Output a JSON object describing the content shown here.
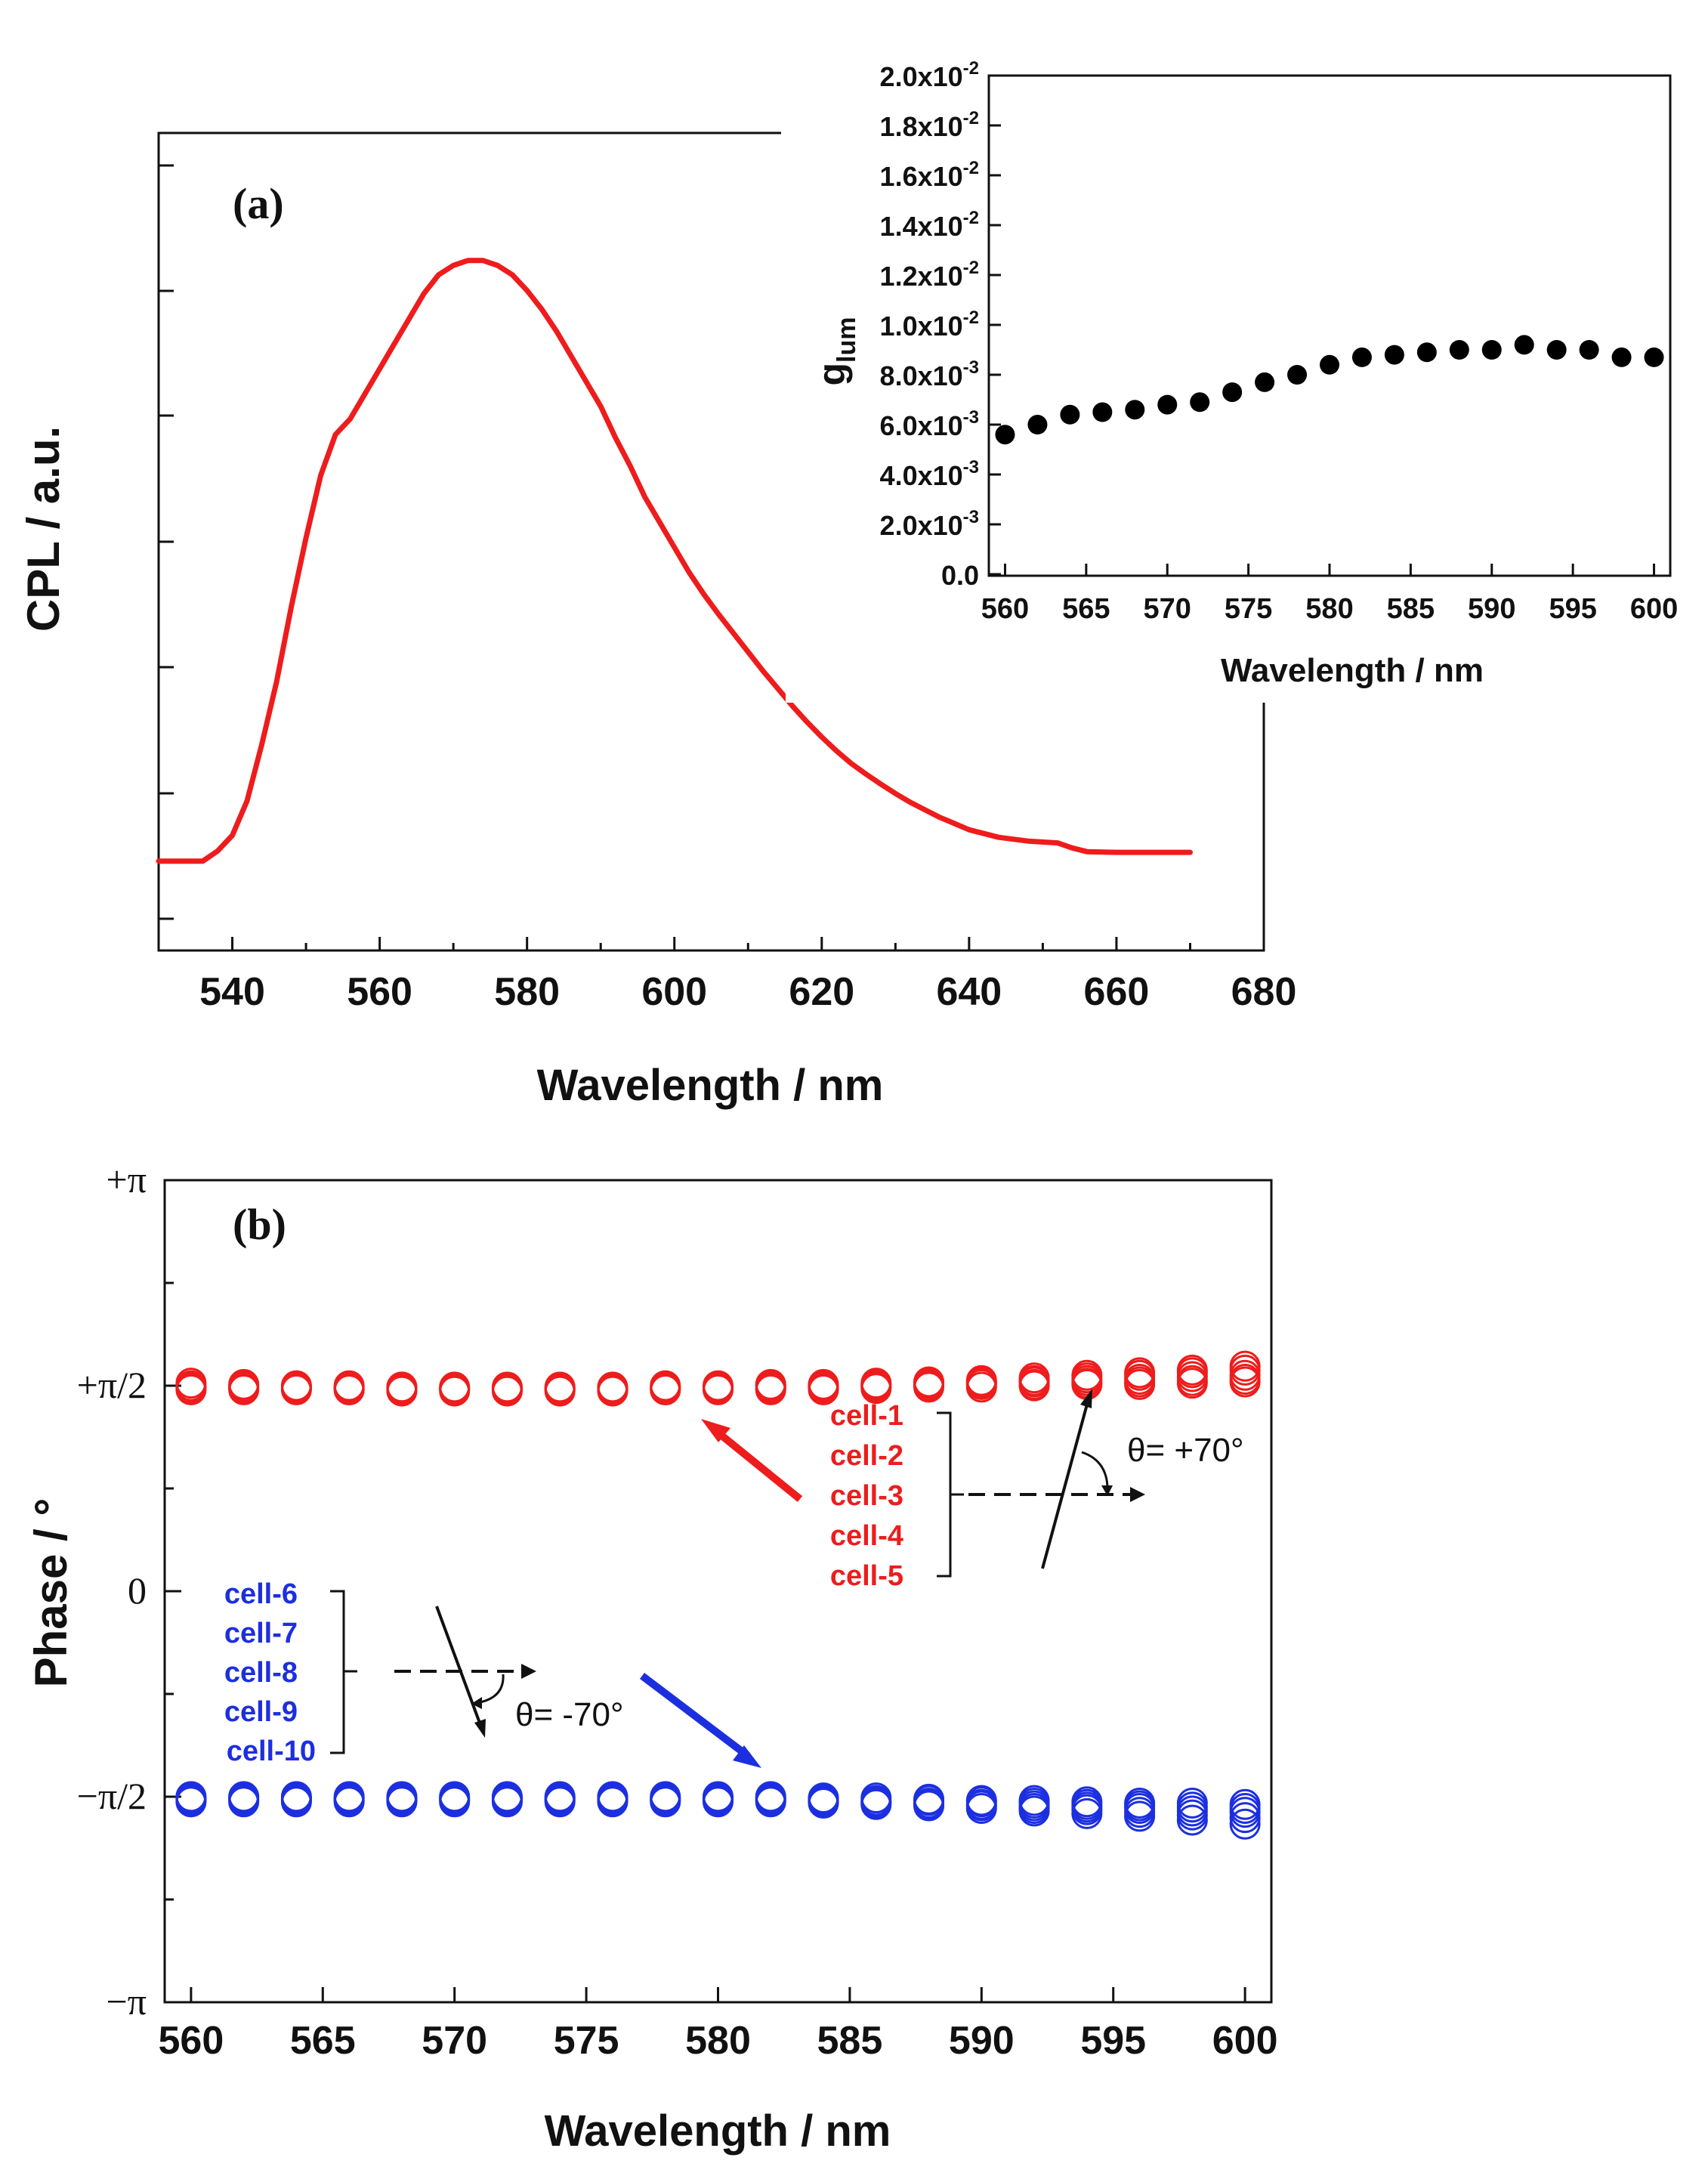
{
  "chart_data": [
    {
      "panel": "(a)",
      "type": "line",
      "title": "",
      "xlabel": "Wavelength / nm",
      "ylabel": "CPL  / a.u.",
      "xlim": [
        530,
        680
      ],
      "ylim": [
        0,
        1
      ],
      "xticks": [
        540,
        560,
        580,
        600,
        620,
        640,
        660,
        680
      ],
      "color": "#ee1c1c",
      "series": [
        {
          "name": "CPL",
          "x": [
            530,
            536,
            538,
            540,
            542,
            544,
            546,
            548,
            550,
            552,
            554,
            556,
            558,
            560,
            562,
            564,
            566,
            568,
            570,
            572,
            574,
            576,
            578,
            580,
            582,
            584,
            586,
            588,
            590,
            592,
            594,
            596,
            598,
            600,
            602,
            604,
            606,
            608,
            610,
            612,
            614,
            616,
            618,
            620,
            622,
            624,
            626,
            628,
            630,
            632,
            634,
            636,
            638,
            640,
            644,
            648,
            652,
            654,
            656,
            660,
            664,
            670
          ],
          "values": [
            0.004,
            0.004,
            0.02,
            0.045,
            0.1,
            0.19,
            0.29,
            0.41,
            0.52,
            0.62,
            0.685,
            0.71,
            0.75,
            0.79,
            0.83,
            0.87,
            0.91,
            0.94,
            0.955,
            0.963,
            0.963,
            0.955,
            0.94,
            0.915,
            0.885,
            0.85,
            0.81,
            0.77,
            0.73,
            0.68,
            0.635,
            0.585,
            0.545,
            0.505,
            0.465,
            0.43,
            0.398,
            0.368,
            0.338,
            0.308,
            0.28,
            0.252,
            0.226,
            0.202,
            0.18,
            0.16,
            0.143,
            0.127,
            0.112,
            0.098,
            0.086,
            0.074,
            0.064,
            0.054,
            0.042,
            0.036,
            0.033,
            0.025,
            0.019,
            0.018,
            0.018,
            0.018
          ]
        }
      ]
    },
    {
      "panel": "inset",
      "type": "scatter",
      "xlabel": "Wavelength / nm",
      "ylabel": "g",
      "ylabel_sub": "lum",
      "xlim": [
        559,
        601
      ],
      "ylim": [
        0,
        0.02
      ],
      "xticks": [
        560,
        565,
        570,
        575,
        580,
        585,
        590,
        595,
        600
      ],
      "yticks": [
        {
          "value": 0.0,
          "base": "0.0",
          "exp": ""
        },
        {
          "value": 0.002,
          "base": "2.0x10",
          "exp": "-3"
        },
        {
          "value": 0.004,
          "base": "4.0x10",
          "exp": "-3"
        },
        {
          "value": 0.006,
          "base": "6.0x10",
          "exp": "-3"
        },
        {
          "value": 0.008,
          "base": "8.0x10",
          "exp": "-3"
        },
        {
          "value": 0.01,
          "base": "1.0x10",
          "exp": "-2"
        },
        {
          "value": 0.012,
          "base": "1.2x10",
          "exp": "-2"
        },
        {
          "value": 0.014,
          "base": "1.4x10",
          "exp": "-2"
        },
        {
          "value": 0.016,
          "base": "1.6x10",
          "exp": "-2"
        },
        {
          "value": 0.018,
          "base": "1.8x10",
          "exp": "-2"
        },
        {
          "value": 0.02,
          "base": "2.0x10",
          "exp": "-2"
        }
      ],
      "series": [
        {
          "name": "glum",
          "x": [
            560,
            562,
            564,
            566,
            568,
            570,
            572,
            574,
            576,
            578,
            580,
            582,
            584,
            586,
            588,
            590,
            592,
            594,
            596,
            598,
            600
          ],
          "values": [
            0.0056,
            0.006,
            0.0064,
            0.0065,
            0.0066,
            0.0068,
            0.0069,
            0.0073,
            0.0077,
            0.008,
            0.0084,
            0.0087,
            0.0088,
            0.0089,
            0.009,
            0.009,
            0.0092,
            0.009,
            0.009,
            0.0087,
            0.0087
          ]
        }
      ]
    },
    {
      "panel": "(b)",
      "type": "scatter",
      "xlabel": "Wavelength / nm",
      "ylabel": "Phase / °",
      "xlim": [
        559,
        601
      ],
      "ylim": [
        -3.1416,
        3.1416
      ],
      "xticks": [
        560,
        565,
        570,
        575,
        580,
        585,
        590,
        595,
        600
      ],
      "yticks": [
        {
          "value": 3.1416,
          "label": "+π"
        },
        {
          "value": 1.5708,
          "label": "+π/2"
        },
        {
          "value": 0,
          "label": "0"
        },
        {
          "value": -1.5708,
          "label": "−π/2"
        },
        {
          "value": -3.1416,
          "label": "−π"
        }
      ],
      "x": [
        560,
        562,
        564,
        566,
        568,
        570,
        572,
        574,
        576,
        578,
        580,
        582,
        584,
        586,
        588,
        590,
        592,
        594,
        596,
        598,
        600
      ],
      "series": [
        {
          "name": "cell-1",
          "color": "#ee1c1c",
          "values": [
            1.59,
            1.58,
            1.57,
            1.57,
            1.56,
            1.56,
            1.56,
            1.56,
            1.56,
            1.57,
            1.57,
            1.58,
            1.58,
            1.59,
            1.6,
            1.61,
            1.63,
            1.65,
            1.67,
            1.69,
            1.72
          ]
        },
        {
          "name": "cell-2",
          "color": "#ee1c1c",
          "values": [
            1.57,
            1.57,
            1.56,
            1.56,
            1.56,
            1.55,
            1.55,
            1.55,
            1.55,
            1.56,
            1.56,
            1.57,
            1.57,
            1.58,
            1.59,
            1.6,
            1.61,
            1.63,
            1.65,
            1.67,
            1.69
          ]
        },
        {
          "name": "cell-3",
          "color": "#ee1c1c",
          "values": [
            1.56,
            1.56,
            1.55,
            1.55,
            1.55,
            1.55,
            1.55,
            1.55,
            1.55,
            1.55,
            1.55,
            1.56,
            1.56,
            1.57,
            1.58,
            1.59,
            1.6,
            1.61,
            1.62,
            1.64,
            1.65
          ]
        },
        {
          "name": "cell-4",
          "color": "#ee1c1c",
          "values": [
            1.55,
            1.55,
            1.55,
            1.54,
            1.54,
            1.54,
            1.54,
            1.54,
            1.54,
            1.54,
            1.55,
            1.55,
            1.55,
            1.56,
            1.57,
            1.58,
            1.58,
            1.59,
            1.6,
            1.61,
            1.62
          ]
        },
        {
          "name": "cell-5",
          "color": "#ee1c1c",
          "values": [
            1.54,
            1.54,
            1.54,
            1.54,
            1.53,
            1.53,
            1.53,
            1.53,
            1.53,
            1.54,
            1.54,
            1.54,
            1.54,
            1.55,
            1.56,
            1.56,
            1.57,
            1.58,
            1.58,
            1.59,
            1.6
          ]
        },
        {
          "name": "cell-6",
          "color": "#1c2fe0",
          "values": [
            -1.61,
            -1.61,
            -1.61,
            -1.61,
            -1.61,
            -1.61,
            -1.61,
            -1.61,
            -1.61,
            -1.61,
            -1.61,
            -1.61,
            -1.62,
            -1.63,
            -1.64,
            -1.66,
            -1.68,
            -1.7,
            -1.72,
            -1.75,
            -1.78
          ]
        },
        {
          "name": "cell-7",
          "color": "#1c2fe0",
          "values": [
            -1.6,
            -1.6,
            -1.6,
            -1.6,
            -1.6,
            -1.6,
            -1.6,
            -1.6,
            -1.6,
            -1.6,
            -1.6,
            -1.6,
            -1.61,
            -1.62,
            -1.63,
            -1.64,
            -1.66,
            -1.67,
            -1.69,
            -1.71,
            -1.73
          ]
        },
        {
          "name": "cell-8",
          "color": "#1c2fe0",
          "values": [
            -1.59,
            -1.59,
            -1.59,
            -1.59,
            -1.59,
            -1.59,
            -1.59,
            -1.59,
            -1.59,
            -1.59,
            -1.59,
            -1.59,
            -1.6,
            -1.61,
            -1.62,
            -1.63,
            -1.64,
            -1.65,
            -1.66,
            -1.68,
            -1.69
          ]
        },
        {
          "name": "cell-9",
          "color": "#1c2fe0",
          "values": [
            -1.58,
            -1.58,
            -1.58,
            -1.58,
            -1.58,
            -1.58,
            -1.58,
            -1.58,
            -1.58,
            -1.58,
            -1.58,
            -1.58,
            -1.59,
            -1.6,
            -1.6,
            -1.61,
            -1.62,
            -1.63,
            -1.64,
            -1.65,
            -1.66
          ]
        },
        {
          "name": "cell-10",
          "color": "#1c2fe0",
          "values": [
            -1.57,
            -1.57,
            -1.57,
            -1.57,
            -1.57,
            -1.57,
            -1.57,
            -1.57,
            -1.57,
            -1.57,
            -1.57,
            -1.57,
            -1.58,
            -1.58,
            -1.59,
            -1.6,
            -1.6,
            -1.61,
            -1.62,
            -1.62,
            -1.63
          ]
        }
      ],
      "annotations": {
        "red_legend": [
          "cell-1",
          "cell-2",
          "cell-3",
          "cell-4",
          "cell-5"
        ],
        "blue_legend": [
          "cell-6",
          "cell-7",
          "cell-8",
          "cell-9",
          "cell-10"
        ],
        "theta_pos": "θ= +70°",
        "theta_neg": "θ= -70°"
      }
    }
  ]
}
